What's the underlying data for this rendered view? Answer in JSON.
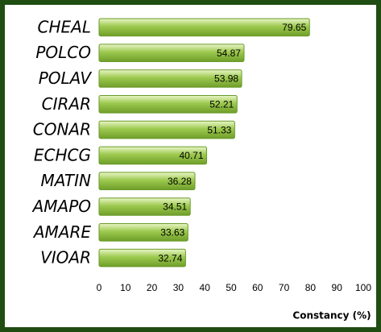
{
  "chart_data": {
    "type": "bar",
    "orientation": "horizontal",
    "categories": [
      "CHEAL",
      "POLCO",
      "POLAV",
      "CIRAR",
      "CONAR",
      "ECHCG",
      "MATIN",
      "AMAPO",
      "AMARE",
      "VIOAR"
    ],
    "values": [
      79.65,
      54.87,
      53.98,
      52.21,
      51.33,
      40.71,
      36.28,
      34.51,
      33.63,
      32.74
    ],
    "color": "#9cc94e",
    "x_label": "Constancy (%)",
    "xlim": [
      0,
      100
    ],
    "xticks": [
      0,
      10,
      20,
      30,
      40,
      50,
      60,
      70,
      80,
      90,
      100
    ],
    "grid": false
  }
}
